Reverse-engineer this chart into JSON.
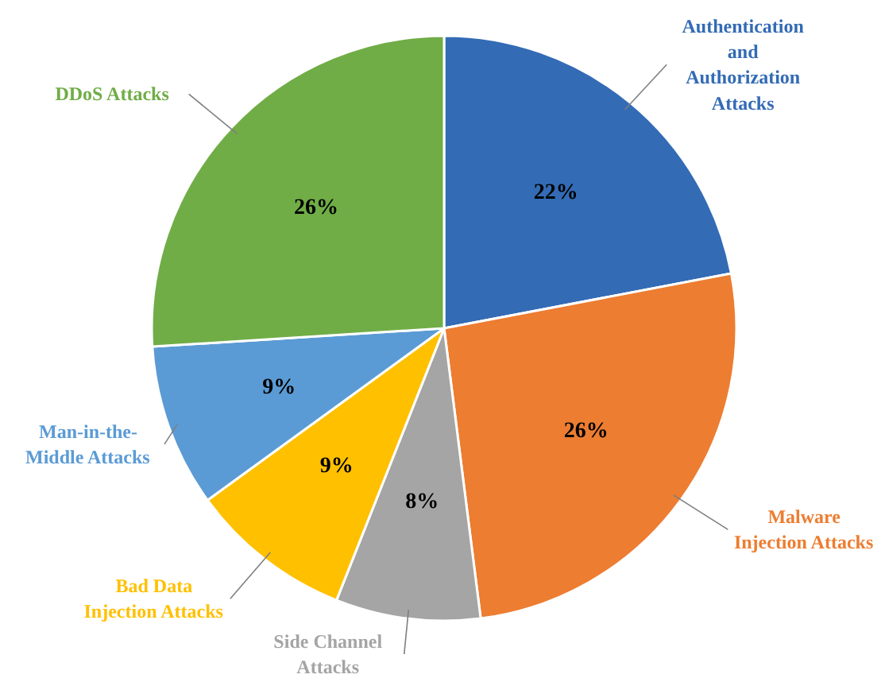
{
  "chart_data": {
    "type": "pie",
    "categories": [
      "Authentication\nand\nAuthorization\nAttacks",
      "Malware\nInjection Attacks",
      "Side Channel\nAttacks",
      "Bad Data\nInjection Attacks",
      "Man-in-the-\nMiddle Attacks",
      "DDoS Attacks"
    ],
    "values": [
      22,
      26,
      8,
      9,
      9,
      26
    ],
    "colors": [
      "#336bb5",
      "#ed7d31",
      "#a5a5a5",
      "#ffc000",
      "#5b9bd5",
      "#70ad47"
    ],
    "value_labels": [
      "22%",
      "26%",
      "8%",
      "9%",
      "9%",
      "26%"
    ]
  }
}
